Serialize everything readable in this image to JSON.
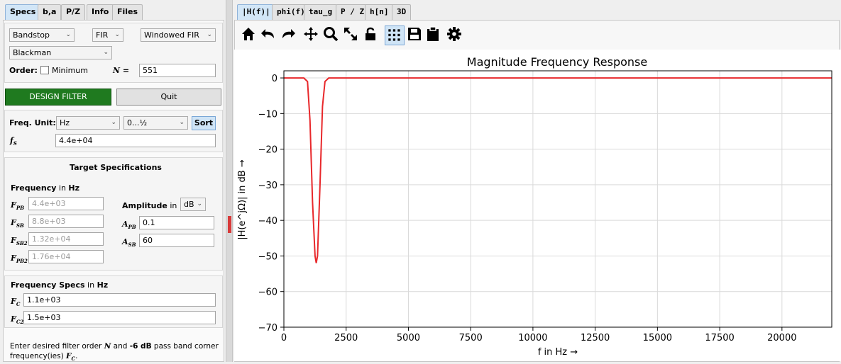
{
  "left_tabs": [
    "Specs",
    "b,a",
    "P/Z",
    "Info",
    "Files"
  ],
  "right_tabs": [
    "|H(f)|",
    "phi(f)",
    "tau_g",
    "P / Z",
    "h[n]",
    "3D"
  ],
  "filter": {
    "response_type": "Bandstop",
    "filter_class": "FIR",
    "design_method": "Windowed FIR",
    "window": "Blackman",
    "order_label": "Order:",
    "minimum_label": "Minimum",
    "n_label": "N =",
    "n_value": "551",
    "design_button": "DESIGN FILTER",
    "quit_button": "Quit"
  },
  "freq": {
    "unit_label": "Freq. Unit:",
    "unit": "Hz",
    "range": "0...½",
    "sort_button": "Sort",
    "fs_label": "f",
    "fs_sub": "S",
    "fs_value": "4.4e+04"
  },
  "target": {
    "title": "Target Specifications",
    "freq_label": "Frequency",
    "in_word": "in",
    "freq_unit": "Hz",
    "fpb_label": "F",
    "fpb_sub": "PB",
    "fpb_value": "4.4e+03",
    "fsb_label": "F",
    "fsb_sub": "SB",
    "fsb_value": "8.8e+03",
    "fsb2_label": "F",
    "fsb2_sub": "SB2",
    "fsb2_value": "1.32e+04",
    "fpb2_label": "F",
    "fpb2_sub": "PB2",
    "fpb2_value": "1.76e+04",
    "amp_label": "Amplitude",
    "amp_in": "in",
    "amp_unit": "dB",
    "apb_label": "A",
    "apb_sub": "PB",
    "apb_value": "0.1",
    "asb_label": "A",
    "asb_sub": "SB",
    "asb_value": "60"
  },
  "freq_specs": {
    "title": "Frequency Specs",
    "in_word": "in",
    "unit": "Hz",
    "fc_label": "F",
    "fc_sub": "C",
    "fc_value": "1.1e+03",
    "fc2_label": "F",
    "fc2_sub": "C2",
    "fc2_value": "1.5e+03"
  },
  "info_text": {
    "line1_a": "Enter desired filter order ",
    "line1_n": "N",
    "line1_b": " and ",
    "line1_db": "-6 dB",
    "line1_c": " pass band corner",
    "line2_a": "frequency(ies) ",
    "line2_f": "F",
    "line2_sub": "C",
    "line2_b": "."
  },
  "toolbar": [
    "home-icon",
    "undo-icon",
    "redo-icon",
    "pan-icon",
    "zoom-icon",
    "zoom-full-icon",
    "lock-icon",
    "grid-icon",
    "save-icon",
    "clipboard-icon",
    "settings-icon"
  ],
  "colors": {
    "curve": "#e8282b",
    "design_button": "#1f7a1f",
    "active_tab": "#d2e6f7"
  },
  "chart_data": {
    "type": "line",
    "title": "Magnitude Frequency Response",
    "xlabel": "f in Hz →",
    "ylabel": "|H(e^jΩ)| in dB →",
    "xlim": [
      0,
      22000
    ],
    "ylim": [
      -70,
      2
    ],
    "xticks": [
      0,
      2500,
      5000,
      7500,
      10000,
      12500,
      15000,
      17500,
      20000
    ],
    "yticks": [
      0,
      -10,
      -20,
      -30,
      -40,
      -50,
      -60,
      -70
    ],
    "grid": true,
    "series": [
      {
        "x": [
          0,
          800,
          950,
          1050,
          1150,
          1250,
          1300,
          1350,
          1450,
          1550,
          1650,
          1800,
          22000
        ],
        "y": [
          0,
          0,
          -1,
          -12,
          -35,
          -50,
          -52,
          -50,
          -30,
          -8,
          -1,
          0,
          0
        ]
      }
    ]
  }
}
